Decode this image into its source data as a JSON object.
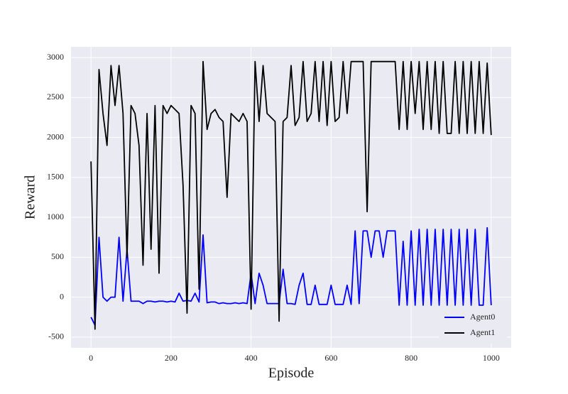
{
  "chart_data": {
    "type": "line",
    "x_label": "Episode",
    "y_label": "Reward",
    "x": [
      0,
      10,
      20,
      30,
      40,
      50,
      60,
      70,
      80,
      90,
      100,
      110,
      120,
      130,
      140,
      150,
      160,
      170,
      180,
      190,
      200,
      210,
      220,
      230,
      240,
      250,
      260,
      270,
      280,
      290,
      300,
      310,
      320,
      330,
      340,
      350,
      360,
      370,
      380,
      390,
      400,
      410,
      420,
      430,
      440,
      450,
      460,
      470,
      480,
      490,
      500,
      510,
      520,
      530,
      540,
      550,
      560,
      570,
      580,
      590,
      600,
      610,
      620,
      630,
      640,
      650,
      660,
      670,
      680,
      690,
      700,
      710,
      720,
      730,
      740,
      750,
      760,
      770,
      780,
      790,
      800,
      810,
      820,
      830,
      840,
      850,
      860,
      870,
      880,
      890,
      900,
      910,
      920,
      930,
      940,
      950,
      960,
      970,
      980,
      990,
      1000
    ],
    "series": [
      {
        "name": "Agent0",
        "color": "#0000ff",
        "values": [
          -250,
          -350,
          750,
          0,
          -50,
          0,
          0,
          750,
          -50,
          600,
          -50,
          -50,
          -50,
          -80,
          -50,
          -50,
          -60,
          -50,
          -50,
          -60,
          -50,
          -60,
          50,
          -50,
          -40,
          -50,
          50,
          -60,
          780,
          -70,
          -60,
          -60,
          -80,
          -70,
          -80,
          -80,
          -70,
          -80,
          -70,
          -80,
          300,
          -80,
          300,
          150,
          -80,
          -80,
          -80,
          -80,
          350,
          -80,
          -80,
          -90,
          150,
          300,
          -90,
          -90,
          150,
          -90,
          -90,
          -90,
          150,
          -90,
          -90,
          -90,
          150,
          -90,
          830,
          -80,
          830,
          830,
          500,
          830,
          830,
          500,
          830,
          830,
          830,
          -100,
          700,
          -100,
          830,
          -100,
          850,
          -100,
          850,
          -100,
          850,
          -100,
          850,
          -100,
          850,
          -100,
          850,
          -100,
          850,
          -100,
          850,
          -100,
          -100,
          870,
          -100
        ]
      },
      {
        "name": "Agent1",
        "color": "#000000",
        "values": [
          1700,
          -400,
          2850,
          2300,
          1900,
          2900,
          2400,
          2900,
          2300,
          500,
          2400,
          2300,
          1900,
          400,
          2300,
          600,
          2400,
          300,
          2400,
          2300,
          2400,
          2350,
          2300,
          1400,
          -200,
          2400,
          2300,
          100,
          2950,
          2100,
          2300,
          2350,
          2250,
          2200,
          1250,
          2300,
          2250,
          2200,
          2300,
          2200,
          -150,
          2950,
          2200,
          2900,
          2300,
          2250,
          2200,
          -300,
          2200,
          2250,
          2900,
          2150,
          2250,
          2950,
          2200,
          2300,
          2950,
          2200,
          2950,
          2150,
          2950,
          2200,
          2250,
          2950,
          2300,
          2950,
          2950,
          2950,
          2950,
          1070,
          2950,
          2950,
          2950,
          2950,
          2950,
          2950,
          2950,
          2100,
          2950,
          2100,
          2950,
          2300,
          2950,
          2100,
          2950,
          2100,
          2950,
          2050,
          2950,
          2050,
          2050,
          2950,
          2050,
          2950,
          2050,
          2950,
          2050,
          2950,
          2050,
          2930,
          2030
        ]
      }
    ],
    "xlim": [
      -50,
      1050
    ],
    "ylim": [
      -634,
      3134
    ],
    "xticks": [
      0,
      200,
      400,
      600,
      800,
      1000
    ],
    "yticks": [
      -500,
      0,
      500,
      1000,
      1500,
      2000,
      2500,
      3000
    ],
    "grid": true,
    "legend": "lower right"
  }
}
